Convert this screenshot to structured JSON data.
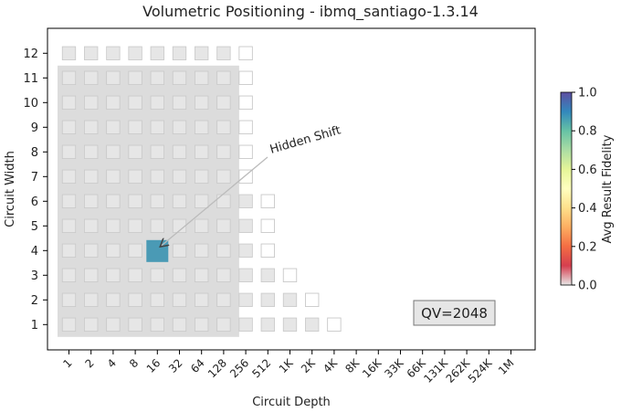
{
  "chart_data": {
    "type": "heatmap",
    "title": "Volumetric Positioning - ibmq_santiago-1.3.14",
    "xlabel": "Circuit Depth",
    "ylabel": "Circuit Width",
    "x_tick_labels": [
      "1",
      "2",
      "4",
      "8",
      "16",
      "32",
      "64",
      "128",
      "256",
      "512",
      "1K",
      "2K",
      "4K",
      "8K",
      "16K",
      "33K",
      "66K",
      "131K",
      "262K",
      "524K",
      "1M"
    ],
    "y_tick_labels": [
      "1",
      "2",
      "3",
      "4",
      "5",
      "6",
      "7",
      "8",
      "9",
      "10",
      "11",
      "12"
    ],
    "grid": false,
    "colorbar": {
      "label": "Avg Result Fidelity",
      "range": [
        0.0,
        1.0
      ],
      "tick_labels": [
        "0.0",
        "0.2",
        "0.4",
        "0.6",
        "0.8",
        "1.0"
      ],
      "colors": [
        "#e8e8e8",
        "#d53e4f",
        "#f46d43",
        "#fdae61",
        "#fee08b",
        "#ffffbf",
        "#e6f598",
        "#abdda4",
        "#66c2a5",
        "#3288bd",
        "#5e4fa2"
      ]
    },
    "volumetric_region": {
      "max_depth": "128",
      "max_width": "11",
      "color": "#dcdcdc"
    },
    "qv_label": "QV=2048",
    "annotation": {
      "text": "Hidden Shift",
      "target_depth": "16",
      "target_width": "4"
    },
    "highlight_cell": {
      "depth": "16",
      "width": "4",
      "fidelity": 0.86,
      "color": "#4a9ab5"
    },
    "cells": [
      {
        "width": "12",
        "depths": [
          "1",
          "2",
          "4",
          "8",
          "16",
          "32",
          "64",
          "128"
        ],
        "style": "gray"
      },
      {
        "width": "12",
        "depths": [
          "256"
        ],
        "style": "empty"
      },
      {
        "width": "11",
        "depths": [
          "1",
          "2",
          "4",
          "8",
          "16",
          "32",
          "64",
          "128"
        ],
        "style": "gray"
      },
      {
        "width": "11",
        "depths": [
          "256"
        ],
        "style": "empty"
      },
      {
        "width": "10",
        "depths": [
          "1",
          "2",
          "4",
          "8",
          "16",
          "32",
          "64",
          "128"
        ],
        "style": "gray"
      },
      {
        "width": "10",
        "depths": [
          "256"
        ],
        "style": "empty"
      },
      {
        "width": "9",
        "depths": [
          "1",
          "2",
          "4",
          "8",
          "16",
          "32",
          "64",
          "128"
        ],
        "style": "gray"
      },
      {
        "width": "9",
        "depths": [
          "256"
        ],
        "style": "empty"
      },
      {
        "width": "8",
        "depths": [
          "1",
          "2",
          "4",
          "8",
          "16",
          "32",
          "64",
          "128"
        ],
        "style": "gray"
      },
      {
        "width": "8",
        "depths": [
          "256"
        ],
        "style": "empty"
      },
      {
        "width": "7",
        "depths": [
          "1",
          "2",
          "4",
          "8",
          "16",
          "32",
          "64",
          "128"
        ],
        "style": "gray"
      },
      {
        "width": "7",
        "depths": [
          "256"
        ],
        "style": "empty"
      },
      {
        "width": "6",
        "depths": [
          "1",
          "2",
          "4",
          "8",
          "16",
          "32",
          "64",
          "128",
          "256"
        ],
        "style": "gray"
      },
      {
        "width": "6",
        "depths": [
          "512"
        ],
        "style": "empty"
      },
      {
        "width": "5",
        "depths": [
          "1",
          "2",
          "4",
          "8",
          "16",
          "32",
          "64",
          "128",
          "256"
        ],
        "style": "gray"
      },
      {
        "width": "5",
        "depths": [
          "512"
        ],
        "style": "empty"
      },
      {
        "width": "4",
        "depths": [
          "1",
          "2",
          "4",
          "8",
          "32",
          "64",
          "128",
          "256"
        ],
        "style": "gray"
      },
      {
        "width": "4",
        "depths": [
          "512"
        ],
        "style": "empty"
      },
      {
        "width": "3",
        "depths": [
          "1",
          "2",
          "4",
          "8",
          "16",
          "32",
          "64",
          "128",
          "256",
          "512"
        ],
        "style": "gray"
      },
      {
        "width": "3",
        "depths": [
          "1K"
        ],
        "style": "empty"
      },
      {
        "width": "2",
        "depths": [
          "1",
          "2",
          "4",
          "8",
          "16",
          "32",
          "64",
          "128",
          "256",
          "512",
          "1K"
        ],
        "style": "gray"
      },
      {
        "width": "2",
        "depths": [
          "2K"
        ],
        "style": "empty"
      },
      {
        "width": "1",
        "depths": [
          "1",
          "2",
          "4",
          "8",
          "16",
          "32",
          "64",
          "128",
          "256",
          "512",
          "1K",
          "2K"
        ],
        "style": "gray"
      },
      {
        "width": "1",
        "depths": [
          "4K"
        ],
        "style": "empty"
      }
    ]
  }
}
